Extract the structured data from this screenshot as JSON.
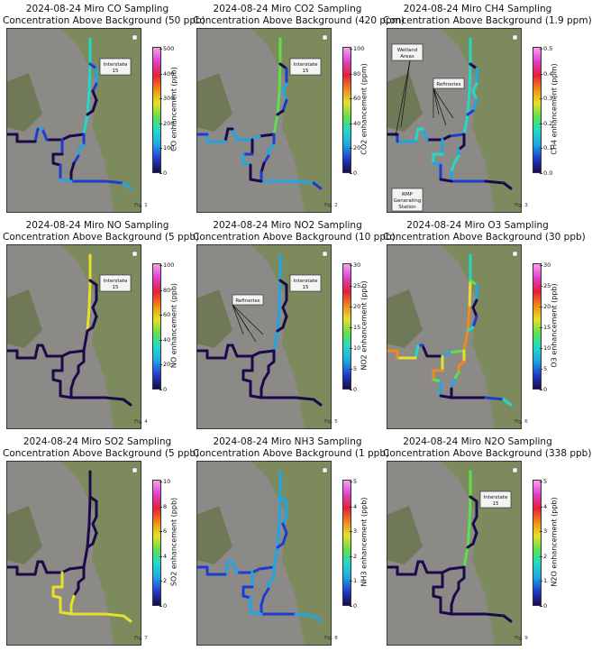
{
  "chart_data": [
    {
      "type": "heatmap",
      "title": "2024-08-24 Miro CO Sampling",
      "subtitle": "Concentration Above Background (50 ppb)",
      "colorbar": {
        "label": "CO enhancement (ppb)",
        "ticks": [
          "0",
          "100",
          "200",
          "300",
          "400",
          "500"
        ],
        "range": [
          0,
          500
        ]
      },
      "figure_label": "Fig. 1",
      "annotations": [
        {
          "text": "Interstate 15"
        }
      ],
      "route_level": "low with high spots near interstate"
    },
    {
      "type": "heatmap",
      "title": "2024-08-24 Miro CO2 Sampling",
      "subtitle": "Concentration Above Background (420 ppm)",
      "colorbar": {
        "label": "CO2 enhancement (ppm)",
        "ticks": [
          "0",
          "20",
          "40",
          "60",
          "80",
          "100"
        ],
        "range": [
          0,
          100
        ]
      },
      "figure_label": "Fig. 2",
      "annotations": [
        {
          "text": "Interstate 15"
        }
      ]
    },
    {
      "type": "heatmap",
      "title": "2024-08-24 Miro CH4 Sampling",
      "subtitle": "Concentration Above Background (1.9 ppm)",
      "colorbar": {
        "label": "CH4 enhancement (ppm)",
        "ticks": [
          "0.0",
          "0.1",
          "0.2",
          "0.3",
          "0.4",
          "0.5"
        ],
        "range": [
          0,
          0.5
        ]
      },
      "figure_label": "Fig. 3",
      "annotations": [
        {
          "text": "Wetland Areas"
        },
        {
          "text": "Refineries"
        },
        {
          "text": "RMP Generating Station"
        }
      ]
    },
    {
      "type": "heatmap",
      "title": "2024-08-24 Miro NO Sampling",
      "subtitle": "Concentration Above Background (5 ppb)",
      "colorbar": {
        "label": "NO enhancement (ppb)",
        "ticks": [
          "0",
          "20",
          "40",
          "60",
          "80",
          "100"
        ],
        "range": [
          0,
          100
        ]
      },
      "figure_label": "Fig. 4",
      "annotations": [
        {
          "text": "Interstate 15"
        }
      ]
    },
    {
      "type": "heatmap",
      "title": "2024-08-24 Miro NO2 Sampling",
      "subtitle": "Concentration Above Background (10 ppb)",
      "colorbar": {
        "label": "NO2 enhancement (ppb)",
        "ticks": [
          "0",
          "5",
          "10",
          "15",
          "20",
          "25",
          "30"
        ],
        "range": [
          0,
          30
        ]
      },
      "figure_label": "Fig. 5",
      "annotations": [
        {
          "text": "Interstate 15"
        },
        {
          "text": "Refineries"
        }
      ]
    },
    {
      "type": "heatmap",
      "title": "2024-08-24 Miro O3 Sampling",
      "subtitle": "Concentration Above Background (30 ppb)",
      "colorbar": {
        "label": "O3 enhancement (ppb)",
        "ticks": [
          "0",
          "5",
          "10",
          "15",
          "20",
          "25",
          "30"
        ],
        "range": [
          0,
          30
        ]
      },
      "figure_label": "Fig. 6",
      "annotations": []
    },
    {
      "type": "heatmap",
      "title": "2024-08-24 Miro SO2 Sampling",
      "subtitle": "Concentration Above Background (5 ppb)",
      "colorbar": {
        "label": "SO2 enhancement (ppb)",
        "ticks": [
          "0",
          "2",
          "4",
          "6",
          "8",
          "10"
        ],
        "range": [
          0,
          10
        ]
      },
      "figure_label": "Fig. 7",
      "annotations": []
    },
    {
      "type": "heatmap",
      "title": "2024-08-24 Miro NH3 Sampling",
      "subtitle": "Concentration Above Background (1 ppb)",
      "colorbar": {
        "label": "NH3 enhancement (ppb)",
        "ticks": [
          "0",
          "1",
          "2",
          "3",
          "4",
          "5"
        ],
        "range": [
          0,
          5
        ]
      },
      "figure_label": "Fig. 8",
      "annotations": []
    },
    {
      "type": "heatmap",
      "title": "2024-08-24 Miro N2O Sampling",
      "subtitle": "Concentration Above Background (338 ppb)",
      "colorbar": {
        "label": "N2O enhancement (ppb)",
        "ticks": [
          "0",
          "1",
          "2",
          "3",
          "4",
          "5"
        ],
        "range": [
          0,
          5
        ]
      },
      "figure_label": "Fig. 9",
      "annotations": [
        {
          "text": "Interstate 15"
        }
      ]
    }
  ],
  "colors": {
    "colormap": [
      "#1a0a4a",
      "#1f3ccf",
      "#1fa6e6",
      "#22d9c8",
      "#5ee04a",
      "#e6e02a",
      "#f08a1a",
      "#e61e3a",
      "#e040c8",
      "#f5a0f0"
    ],
    "map_terrain": "#7b8a5a",
    "map_urban": "#8c8a86",
    "callout_bg": "#f4f4f4"
  }
}
